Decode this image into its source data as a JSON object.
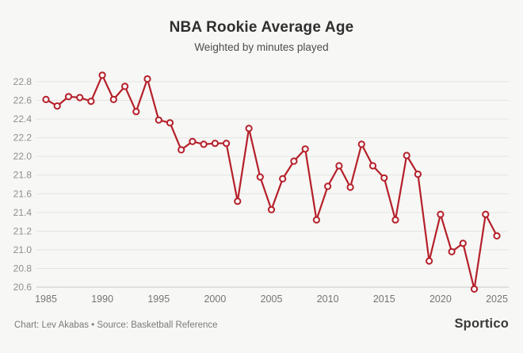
{
  "header": {
    "title": "NBA Rookie Average Age",
    "subtitle": "Weighted by minutes played"
  },
  "chart_data": {
    "type": "line",
    "title": "NBA Rookie Average Age",
    "subtitle": "Weighted by minutes played",
    "series_name": "NBA rookie average age (weighted by minutes played)",
    "x": [
      1985,
      1986,
      1987,
      1988,
      1989,
      1990,
      1991,
      1992,
      1993,
      1994,
      1995,
      1996,
      1997,
      1998,
      1999,
      2000,
      2001,
      2002,
      2003,
      2004,
      2005,
      2006,
      2007,
      2008,
      2009,
      2010,
      2011,
      2012,
      2013,
      2014,
      2015,
      2016,
      2017,
      2018,
      2019,
      2020,
      2021,
      2022,
      2023,
      2024,
      2025
    ],
    "values": [
      22.61,
      22.54,
      22.64,
      22.63,
      22.59,
      22.87,
      22.61,
      22.75,
      22.48,
      22.83,
      22.39,
      22.36,
      22.07,
      22.16,
      22.13,
      22.14,
      22.14,
      21.52,
      22.3,
      21.78,
      21.43,
      21.76,
      21.95,
      22.08,
      21.32,
      21.68,
      21.9,
      21.67,
      22.13,
      21.9,
      21.77,
      21.32,
      22.01,
      21.81,
      20.88,
      21.38,
      20.98,
      21.07,
      20.58,
      21.38,
      21.15
    ],
    "x_ticks": [
      "1985",
      "1990",
      "1995",
      "2000",
      "2005",
      "2010",
      "2015",
      "2020",
      "2025"
    ],
    "y_ticks": [
      "22.8",
      "22.6",
      "22.4",
      "22.2",
      "22.0",
      "21.8",
      "21.6",
      "21.4",
      "21.2",
      "21.0",
      "20.8",
      "20.6"
    ],
    "xlim": [
      1985,
      2025
    ],
    "ylim": [
      20.6,
      22.8
    ],
    "grid": "horizontal",
    "legend": "none",
    "marker": "open-circle",
    "line_color": "#b5202a",
    "marker_fill": "#fbfbfa",
    "grid_color": "#e4e4e2",
    "baseline_color": "#c9c9c7",
    "y_label_color": "#8e8e8e",
    "x_label_color": "#757575"
  },
  "footer": {
    "credit": "Chart: Lev Akabas • Source: Basketball Reference",
    "brand": "Sportico"
  }
}
